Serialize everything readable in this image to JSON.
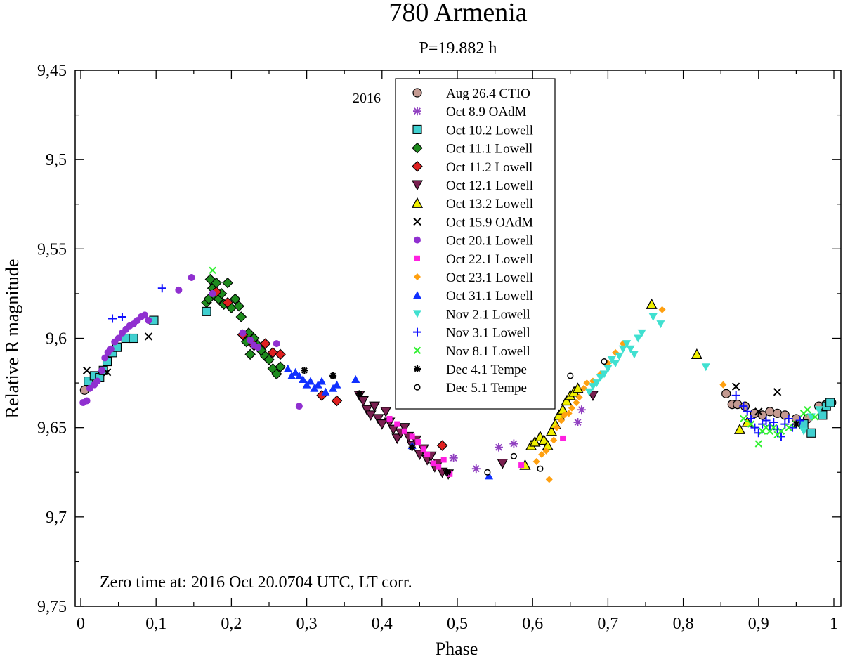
{
  "chart_data": {
    "type": "scatter",
    "title": "780 Armenia",
    "subtitle": "P=19.882 h",
    "xlabel": "Phase",
    "ylabel": "Relative R magnitude",
    "xlim": [
      0,
      1
    ],
    "ylim": [
      9.45,
      9.75
    ],
    "y_inverted": true,
    "x_ticks": [
      "0",
      "0,1",
      "0,2",
      "0,3",
      "0,4",
      "0,5",
      "0,6",
      "0,7",
      "0,8",
      "0,9",
      "1"
    ],
    "y_ticks": [
      "9,45",
      "9,5",
      "9,55",
      "9,6",
      "9,65",
      "9,7",
      "9,75"
    ],
    "legend_title": "2016",
    "legend_position": "top-center",
    "annotation": "Zero time at: 2016 Oct 20.0704 UTC, LT corr.",
    "series": [
      {
        "name": "Aug 26.4 CTIO",
        "marker": "circle",
        "color": "#c49a91",
        "points": [
          [
            0.005,
            9.629
          ],
          [
            0.857,
            9.631
          ],
          [
            0.865,
            9.637
          ],
          [
            0.872,
            9.637
          ],
          [
            0.882,
            9.638
          ],
          [
            0.895,
            9.642
          ],
          [
            0.905,
            9.643
          ],
          [
            0.915,
            9.641
          ],
          [
            0.925,
            9.642
          ],
          [
            0.935,
            9.643
          ],
          [
            0.95,
            9.645
          ],
          [
            0.965,
            9.645
          ],
          [
            0.98,
            9.638
          ],
          [
            0.99,
            9.637
          ],
          [
            0.997,
            9.636
          ]
        ]
      },
      {
        "name": "Oct 8.9 OAdM",
        "marker": "asterisk",
        "color": "#9040c0",
        "points": [
          [
            0.495,
            9.667
          ],
          [
            0.525,
            9.673
          ],
          [
            0.555,
            9.661
          ],
          [
            0.575,
            9.659
          ],
          [
            0.66,
            9.647
          ],
          [
            0.665,
            9.64
          ]
        ]
      },
      {
        "name": "Oct 10.2 Lowell",
        "marker": "square",
        "color": "#40d0d0",
        "points": [
          [
            0.01,
            9.624
          ],
          [
            0.018,
            9.621
          ],
          [
            0.025,
            9.622
          ],
          [
            0.03,
            9.618
          ],
          [
            0.035,
            9.613
          ],
          [
            0.042,
            9.608
          ],
          [
            0.048,
            9.605
          ],
          [
            0.06,
            9.6
          ],
          [
            0.07,
            9.6
          ],
          [
            0.097,
            9.59
          ],
          [
            0.167,
            9.585
          ],
          [
            0.96,
            9.648
          ],
          [
            0.97,
            9.653
          ],
          [
            0.985,
            9.643
          ],
          [
            0.99,
            9.638
          ],
          [
            0.995,
            9.636
          ]
        ]
      },
      {
        "name": "Oct 11.1 Lowell",
        "marker": "diamond",
        "color": "#1e8c1e",
        "points": [
          [
            0.167,
            9.58
          ],
          [
            0.17,
            9.578
          ],
          [
            0.172,
            9.567
          ],
          [
            0.175,
            9.572
          ],
          [
            0.178,
            9.576
          ],
          [
            0.18,
            9.569
          ],
          [
            0.183,
            9.578
          ],
          [
            0.187,
            9.575
          ],
          [
            0.19,
            9.581
          ],
          [
            0.195,
            9.569
          ],
          [
            0.2,
            9.583
          ],
          [
            0.205,
            9.578
          ],
          [
            0.21,
            9.582
          ],
          [
            0.213,
            9.588
          ],
          [
            0.22,
            9.602
          ],
          [
            0.223,
            9.597
          ],
          [
            0.225,
            9.609
          ],
          [
            0.23,
            9.6
          ],
          [
            0.235,
            9.604
          ],
          [
            0.24,
            9.607
          ],
          [
            0.245,
            9.61
          ],
          [
            0.25,
            9.612
          ],
          [
            0.255,
            9.617
          ],
          [
            0.26,
            9.62
          ],
          [
            0.265,
            9.616
          ]
        ]
      },
      {
        "name": "Oct 11.2 Lowell",
        "marker": "diamond",
        "color": "#e02020",
        "points": [
          [
            0.18,
            9.574
          ],
          [
            0.195,
            9.58
          ],
          [
            0.215,
            9.598
          ],
          [
            0.23,
            9.604
          ],
          [
            0.245,
            9.603
          ],
          [
            0.255,
            9.608
          ],
          [
            0.265,
            9.609
          ],
          [
            0.32,
            9.632
          ],
          [
            0.34,
            9.635
          ],
          [
            0.48,
            9.66
          ]
        ]
      },
      {
        "name": "Oct 12.1 Lowell",
        "marker": "triangle-down",
        "color": "#7a2050",
        "points": [
          [
            0.37,
            9.632
          ],
          [
            0.375,
            9.635
          ],
          [
            0.38,
            9.64
          ],
          [
            0.385,
            9.643
          ],
          [
            0.39,
            9.638
          ],
          [
            0.395,
            9.645
          ],
          [
            0.4,
            9.648
          ],
          [
            0.405,
            9.641
          ],
          [
            0.41,
            9.647
          ],
          [
            0.415,
            9.651
          ],
          [
            0.42,
            9.656
          ],
          [
            0.425,
            9.653
          ],
          [
            0.43,
            9.65
          ],
          [
            0.435,
            9.655
          ],
          [
            0.44,
            9.66
          ],
          [
            0.445,
            9.657
          ],
          [
            0.45,
            9.665
          ],
          [
            0.455,
            9.662
          ],
          [
            0.46,
            9.668
          ],
          [
            0.465,
            9.666
          ],
          [
            0.47,
            9.672
          ],
          [
            0.475,
            9.67
          ],
          [
            0.48,
            9.675
          ],
          [
            0.488,
            9.676
          ],
          [
            0.56,
            9.67
          ],
          [
            0.68,
            9.632
          ]
        ]
      },
      {
        "name": "Oct 13.2 Lowell",
        "marker": "triangle-up",
        "color": "#f0f000",
        "points": [
          [
            0.59,
            9.671
          ],
          [
            0.598,
            9.66
          ],
          [
            0.603,
            9.658
          ],
          [
            0.61,
            9.655
          ],
          [
            0.615,
            9.657
          ],
          [
            0.62,
            9.66
          ],
          [
            0.625,
            9.652
          ],
          [
            0.63,
            9.648
          ],
          [
            0.635,
            9.643
          ],
          [
            0.64,
            9.64
          ],
          [
            0.645,
            9.635
          ],
          [
            0.65,
            9.632
          ],
          [
            0.655,
            9.63
          ],
          [
            0.66,
            9.628
          ],
          [
            0.758,
            9.581
          ],
          [
            0.818,
            9.609
          ],
          [
            0.875,
            9.651
          ],
          [
            0.885,
            9.647
          ]
        ]
      },
      {
        "name": "Oct 15.9 OAdM",
        "marker": "x",
        "color": "#000000",
        "points": [
          [
            0.008,
            9.618
          ],
          [
            0.035,
            9.619
          ],
          [
            0.09,
            9.599
          ],
          [
            0.87,
            9.627
          ],
          [
            0.9,
            9.641
          ],
          [
            0.925,
            9.63
          ]
        ]
      },
      {
        "name": "Oct 20.1 Lowell",
        "marker": "dot",
        "color": "#9030d0",
        "points": [
          [
            0.003,
            9.636
          ],
          [
            0.008,
            9.635
          ],
          [
            0.012,
            9.628
          ],
          [
            0.018,
            9.626
          ],
          [
            0.022,
            9.624
          ],
          [
            0.028,
            9.618
          ],
          [
            0.032,
            9.611
          ],
          [
            0.036,
            9.608
          ],
          [
            0.04,
            9.606
          ],
          [
            0.045,
            9.602
          ],
          [
            0.05,
            9.6
          ],
          [
            0.055,
            9.597
          ],
          [
            0.06,
            9.595
          ],
          [
            0.065,
            9.593
          ],
          [
            0.07,
            9.592
          ],
          [
            0.075,
            9.59
          ],
          [
            0.08,
            9.588
          ],
          [
            0.085,
            9.587
          ],
          [
            0.09,
            9.59
          ],
          [
            0.13,
            9.573
          ],
          [
            0.147,
            9.566
          ],
          [
            0.175,
            9.575
          ],
          [
            0.215,
            9.597
          ],
          [
            0.225,
            9.601
          ],
          [
            0.23,
            9.604
          ],
          [
            0.235,
            9.605
          ],
          [
            0.26,
            9.603
          ],
          [
            0.29,
            9.638
          ]
        ]
      },
      {
        "name": "Oct 22.1 Lowell",
        "marker": "square-small",
        "color": "#ff20e0",
        "points": [
          [
            0.41,
            9.645
          ],
          [
            0.42,
            9.648
          ],
          [
            0.43,
            9.652
          ],
          [
            0.44,
            9.655
          ],
          [
            0.448,
            9.658
          ],
          [
            0.455,
            9.662
          ],
          [
            0.46,
            9.665
          ],
          [
            0.468,
            9.67
          ],
          [
            0.475,
            9.672
          ],
          [
            0.482,
            9.668
          ],
          [
            0.49,
            9.676
          ],
          [
            0.585,
            9.671
          ],
          [
            0.64,
            9.656
          ]
        ]
      },
      {
        "name": "Oct 23.1 Lowell",
        "marker": "diamond-small",
        "color": "#ffa010",
        "points": [
          [
            0.605,
            9.669
          ],
          [
            0.612,
            9.665
          ],
          [
            0.618,
            9.663
          ],
          [
            0.622,
            9.679
          ],
          [
            0.628,
            9.657
          ],
          [
            0.632,
            9.65
          ],
          [
            0.638,
            9.646
          ],
          [
            0.642,
            9.643
          ],
          [
            0.648,
            9.642
          ],
          [
            0.652,
            9.639
          ],
          [
            0.658,
            9.636
          ],
          [
            0.662,
            9.633
          ],
          [
            0.668,
            9.628
          ],
          [
            0.672,
            9.625
          ],
          [
            0.68,
            9.624
          ],
          [
            0.69,
            9.62
          ],
          [
            0.7,
            9.614
          ],
          [
            0.71,
            9.608
          ],
          [
            0.72,
            9.603
          ],
          [
            0.772,
            9.584
          ],
          [
            0.853,
            9.626
          ]
        ]
      },
      {
        "name": "Oct 31.1 Lowell",
        "marker": "triangle-up-small",
        "color": "#1030ff",
        "points": [
          [
            0.275,
            9.617
          ],
          [
            0.28,
            9.621
          ],
          [
            0.285,
            9.619
          ],
          [
            0.29,
            9.621
          ],
          [
            0.295,
            9.623
          ],
          [
            0.3,
            9.626
          ],
          [
            0.305,
            9.624
          ],
          [
            0.31,
            9.628
          ],
          [
            0.315,
            9.626
          ],
          [
            0.32,
            9.624
          ],
          [
            0.325,
            9.63
          ],
          [
            0.335,
            9.628
          ],
          [
            0.34,
            9.626
          ],
          [
            0.365,
            9.623
          ],
          [
            0.44,
            9.66
          ],
          [
            0.542,
            9.677
          ]
        ]
      },
      {
        "name": "Nov 2.1 Lowell",
        "marker": "triangle-down-small",
        "color": "#40e0d0",
        "points": [
          [
            0.675,
            9.63
          ],
          [
            0.68,
            9.627
          ],
          [
            0.685,
            9.625
          ],
          [
            0.69,
            9.622
          ],
          [
            0.695,
            9.62
          ],
          [
            0.7,
            9.617
          ],
          [
            0.705,
            9.612
          ],
          [
            0.71,
            9.614
          ],
          [
            0.715,
            9.61
          ],
          [
            0.72,
            9.606
          ],
          [
            0.725,
            9.603
          ],
          [
            0.73,
            9.606
          ],
          [
            0.735,
            9.609
          ],
          [
            0.74,
            9.6
          ],
          [
            0.745,
            9.597
          ],
          [
            0.76,
            9.588
          ],
          [
            0.77,
            9.592
          ],
          [
            0.83,
            9.616
          ],
          [
            0.96,
            9.652
          ],
          [
            0.97,
            9.644
          ],
          [
            0.98,
            9.64
          ]
        ]
      },
      {
        "name": "Nov 3.1 Lowell",
        "marker": "plus",
        "color": "#1010ff",
        "points": [
          [
            0.042,
            9.589
          ],
          [
            0.055,
            9.588
          ],
          [
            0.108,
            9.572
          ],
          [
            0.87,
            9.632
          ],
          [
            0.88,
            9.638
          ],
          [
            0.885,
            9.641
          ],
          [
            0.89,
            9.645
          ],
          [
            0.895,
            9.65
          ],
          [
            0.9,
            9.653
          ],
          [
            0.905,
            9.648
          ],
          [
            0.91,
            9.646
          ],
          [
            0.915,
            9.649
          ],
          [
            0.92,
            9.647
          ],
          [
            0.925,
            9.651
          ],
          [
            0.93,
            9.655
          ],
          [
            0.935,
            9.648
          ],
          [
            0.94,
            9.645
          ],
          [
            0.945,
            9.65
          ],
          [
            0.955,
            9.646
          ]
        ]
      },
      {
        "name": "Nov 8.1 Lowell",
        "marker": "x-small",
        "color": "#30f030",
        "points": [
          [
            0.175,
            9.562
          ],
          [
            0.88,
            9.645
          ],
          [
            0.89,
            9.648
          ],
          [
            0.9,
            9.659
          ],
          [
            0.905,
            9.652
          ],
          [
            0.91,
            9.65
          ],
          [
            0.915,
            9.652
          ],
          [
            0.92,
            9.65
          ],
          [
            0.925,
            9.654
          ],
          [
            0.93,
            9.652
          ],
          [
            0.94,
            9.65
          ],
          [
            0.95,
            9.648
          ],
          [
            0.96,
            9.642
          ],
          [
            0.965,
            9.64
          ],
          [
            0.975,
            9.644
          ]
        ]
      },
      {
        "name": "Dec 4.1 Tempe",
        "marker": "star",
        "color": "#000000",
        "points": [
          [
            0.297,
            9.618
          ],
          [
            0.335,
            9.621
          ],
          [
            0.37,
            9.631
          ],
          [
            0.44,
            9.661
          ],
          [
            0.487,
            9.675
          ],
          [
            0.95,
            9.648
          ]
        ]
      },
      {
        "name": "Dec 5.1 Tempe",
        "marker": "open-circle",
        "color": "#000000",
        "points": [
          [
            0.54,
            9.675
          ],
          [
            0.575,
            9.666
          ],
          [
            0.61,
            9.673
          ],
          [
            0.65,
            9.621
          ],
          [
            0.695,
            9.613
          ]
        ]
      }
    ]
  }
}
